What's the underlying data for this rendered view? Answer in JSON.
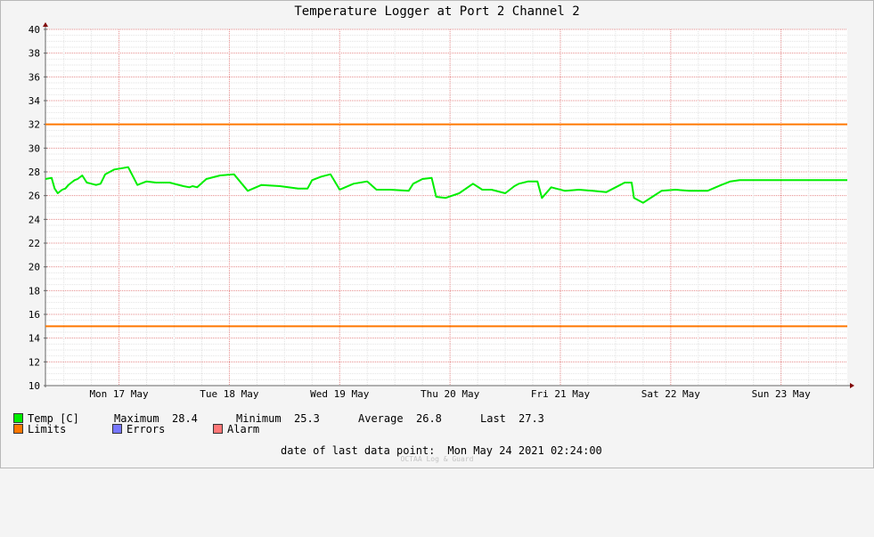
{
  "chart_data": {
    "type": "line",
    "title": "Temperature Logger at Port 2 Channel 2",
    "ylim": [
      10,
      40
    ],
    "yticks": [
      10,
      12,
      14,
      16,
      18,
      20,
      22,
      24,
      26,
      28,
      30,
      32,
      34,
      36,
      38,
      40
    ],
    "xlim": [
      "2021-05-16T20:00",
      "2021-05-24T02:24"
    ],
    "xlabels": [
      "Mon 17 May",
      "Tue 18 May",
      "Wed 19 May",
      "Thu 20 May",
      "Fri 21 May",
      "Sat 22 May",
      "Sun 23 May"
    ],
    "grid": true,
    "series": [
      {
        "name": "Temp [C]",
        "color": "#00ee00",
        "x": [
          "2021-05-16T20:00",
          "2021-05-16T21:20",
          "2021-05-16T22:00",
          "2021-05-16T22:40",
          "2021-05-16T23:40",
          "2021-05-17T00:20",
          "2021-05-17T01:00",
          "2021-05-17T01:40",
          "2021-05-17T02:20",
          "2021-05-17T03:00",
          "2021-05-17T04:00",
          "2021-05-17T05:00",
          "2021-05-17T06:00",
          "2021-05-17T07:00",
          "2021-05-17T08:00",
          "2021-05-17T09:00",
          "2021-05-17T11:00",
          "2021-05-17T14:00",
          "2021-05-17T16:00",
          "2021-05-17T18:00",
          "2021-05-17T20:00",
          "2021-05-17T23:00",
          "2021-05-18T02:00",
          "2021-05-18T03:20",
          "2021-05-18T04:00",
          "2021-05-18T05:00",
          "2021-05-18T07:00",
          "2021-05-18T10:00",
          "2021-05-18T13:00",
          "2021-05-18T16:00",
          "2021-05-18T19:00",
          "2021-05-18T23:00",
          "2021-05-19T03:00",
          "2021-05-19T04:00",
          "2021-05-19T05:00",
          "2021-05-19T06:00",
          "2021-05-19T08:00",
          "2021-05-19T10:00",
          "2021-05-19T12:00",
          "2021-05-19T15:00",
          "2021-05-19T18:00",
          "2021-05-19T20:00",
          "2021-05-19T23:00",
          "2021-05-20T03:00",
          "2021-05-20T04:00",
          "2021-05-20T06:00",
          "2021-05-20T08:00",
          "2021-05-20T09:00",
          "2021-05-20T11:00",
          "2021-05-20T14:00",
          "2021-05-20T17:00",
          "2021-05-20T19:00",
          "2021-05-20T21:00",
          "2021-05-21T00:00",
          "2021-05-21T02:00",
          "2021-05-21T03:00",
          "2021-05-21T05:00",
          "2021-05-21T07:00",
          "2021-05-21T08:00",
          "2021-05-21T10:00",
          "2021-05-21T13:00",
          "2021-05-21T16:00",
          "2021-05-21T19:00",
          "2021-05-21T22:00",
          "2021-05-22T01:00",
          "2021-05-22T02:00",
          "2021-05-22T03:30",
          "2021-05-22T04:00",
          "2021-05-22T06:00",
          "2021-05-22T08:00",
          "2021-05-22T10:00",
          "2021-05-22T13:00",
          "2021-05-22T16:00",
          "2021-05-22T20:00",
          "2021-05-22T23:00",
          "2021-05-23T01:00",
          "2021-05-23T03:00",
          "2021-05-23T05:00",
          "2021-05-23T07:00",
          "2021-05-23T09:00",
          "2021-05-23T12:00",
          "2021-05-23T15:00",
          "2021-05-23T18:00",
          "2021-05-23T21:00",
          "2021-05-23T23:00",
          "2021-05-24T02:24"
        ],
        "values": [
          27.4,
          27.5,
          26.6,
          26.2,
          26.5,
          26.6,
          26.9,
          27.1,
          27.3,
          27.4,
          27.7,
          27.1,
          27.0,
          26.9,
          27.0,
          27.8,
          28.2,
          28.4,
          26.9,
          27.2,
          27.1,
          27.1,
          26.8,
          26.7,
          26.8,
          26.7,
          27.4,
          27.7,
          27.8,
          26.4,
          26.9,
          26.8,
          26.6,
          26.6,
          26.6,
          27.3,
          27.6,
          27.8,
          26.5,
          27.0,
          27.2,
          26.5,
          26.5,
          26.4,
          27.0,
          27.4,
          27.5,
          25.9,
          25.8,
          26.2,
          27.0,
          26.5,
          26.5,
          26.2,
          26.8,
          27.0,
          27.2,
          27.2,
          25.8,
          26.7,
          26.4,
          26.5,
          26.4,
          26.3,
          26.9,
          27.1,
          27.1,
          25.8,
          25.4,
          25.9,
          26.4,
          26.5,
          26.4,
          26.4,
          26.9,
          27.2,
          27.3,
          27.3,
          27.3,
          27.3,
          27.3,
          27.3,
          27.3,
          27.3,
          27.3,
          27.3
        ]
      },
      {
        "name": "Limits",
        "color": "#ff7700",
        "levels": [
          32,
          15
        ]
      }
    ],
    "legend": "bottom"
  },
  "legend": {
    "temp_label": "Temp [C]",
    "limits_label": "Limits",
    "errors_label": "Errors",
    "alarm_label": "Alarm",
    "colors": {
      "temp": "#00ee00",
      "limits": "#ff7700",
      "errors": "#7777ff",
      "alarm": "#ff7777"
    }
  },
  "stats": {
    "maximum_label": "Maximum",
    "maximum": "28.4",
    "minimum_label": "Minimum",
    "minimum": "25.3",
    "average_label": "Average",
    "average": "26.8",
    "last_label": "Last",
    "last": "27.3"
  },
  "footer": {
    "last_point_label": "date of last data point:",
    "last_point_value": "Mon May 24 2021 02:24:00"
  },
  "watermark": "OCTAA Log & Guard"
}
